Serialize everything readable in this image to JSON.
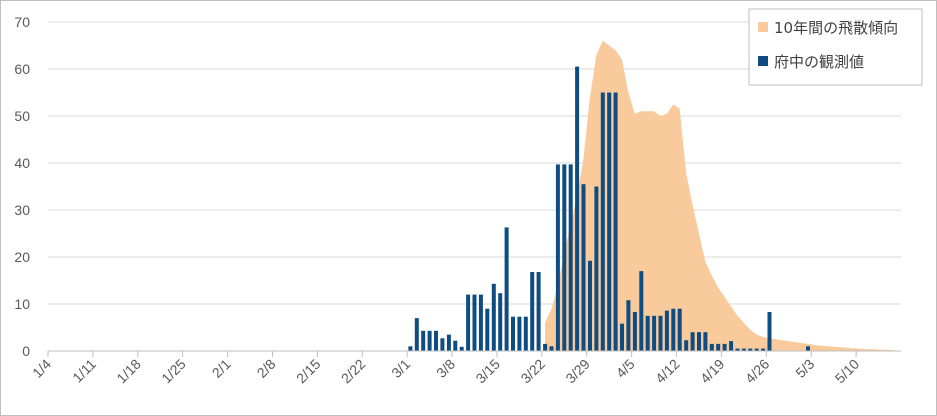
{
  "chart_data": {
    "type": "bar",
    "title": "",
    "xlabel": "",
    "ylabel": "",
    "ylim": [
      0,
      70
    ],
    "yticks": [
      "0",
      "10",
      "20",
      "30",
      "40",
      "50",
      "60",
      "70"
    ],
    "x_start": "1/4",
    "x_end": "5/16",
    "xticks": [
      "1/4",
      "1/11",
      "1/18",
      "1/25",
      "2/1",
      "2/8",
      "2/15",
      "2/22",
      "3/1",
      "3/8",
      "3/15",
      "3/22",
      "3/29",
      "4/5",
      "4/12",
      "4/19",
      "4/26",
      "5/3",
      "5/10"
    ],
    "grid": true,
    "legend_position": "top-right",
    "series": [
      {
        "name": "10年間の飛散傾向",
        "kind": "area",
        "color": "#f9cb9c",
        "points": [
          [
            "3/22",
            6
          ],
          [
            "3/23",
            9
          ],
          [
            "3/24",
            14
          ],
          [
            "3/25",
            21
          ],
          [
            "3/26",
            27
          ],
          [
            "3/27",
            33
          ],
          [
            "3/28",
            41
          ],
          [
            "3/29",
            54
          ],
          [
            "3/30",
            63
          ],
          [
            "3/31",
            66
          ],
          [
            "4/1",
            65
          ],
          [
            "4/2",
            64
          ],
          [
            "4/3",
            62
          ],
          [
            "4/4",
            55
          ],
          [
            "4/5",
            50.5
          ],
          [
            "4/6",
            51
          ],
          [
            "4/7",
            51
          ],
          [
            "4/8",
            51
          ],
          [
            "4/9",
            50
          ],
          [
            "4/10",
            50.5
          ],
          [
            "4/11",
            52.5
          ],
          [
            "4/12",
            51.5
          ],
          [
            "4/13",
            38
          ],
          [
            "4/14",
            31
          ],
          [
            "4/15",
            25
          ],
          [
            "4/16",
            19
          ],
          [
            "4/17",
            16
          ],
          [
            "4/18",
            13.5
          ],
          [
            "4/19",
            11.5
          ],
          [
            "4/20",
            9.5
          ],
          [
            "4/21",
            7.5
          ],
          [
            "4/22",
            6
          ],
          [
            "4/23",
            4.5
          ],
          [
            "4/24",
            3.5
          ],
          [
            "4/25",
            3
          ],
          [
            "4/26",
            2.7
          ],
          [
            "4/27",
            2.5
          ],
          [
            "4/28",
            2.3
          ],
          [
            "4/29",
            2.1
          ],
          [
            "4/30",
            1.9
          ],
          [
            "5/1",
            1.7
          ],
          [
            "5/2",
            1.5
          ],
          [
            "5/3",
            1.3
          ],
          [
            "5/4",
            1.1
          ],
          [
            "5/5",
            1
          ],
          [
            "5/6",
            0.9
          ],
          [
            "5/7",
            0.8
          ],
          [
            "5/8",
            0.7
          ],
          [
            "5/9",
            0.6
          ],
          [
            "5/10",
            0.5
          ],
          [
            "5/11",
            0.4
          ],
          [
            "5/12",
            0.4
          ],
          [
            "5/13",
            0.3
          ],
          [
            "5/14",
            0.3
          ],
          [
            "5/15",
            0.2
          ],
          [
            "5/16",
            0.1
          ]
        ]
      },
      {
        "name": "府中の観測値",
        "kind": "bar",
        "color": "#0f4c81",
        "points": [
          [
            "3/1",
            1
          ],
          [
            "3/2",
            7
          ],
          [
            "3/3",
            4.3
          ],
          [
            "3/4",
            4.3
          ],
          [
            "3/5",
            4.3
          ],
          [
            "3/6",
            2.7
          ],
          [
            "3/7",
            3.5
          ],
          [
            "3/8",
            2.2
          ],
          [
            "3/9",
            0.9
          ],
          [
            "3/10",
            12
          ],
          [
            "3/11",
            12
          ],
          [
            "3/12",
            12
          ],
          [
            "3/13",
            9
          ],
          [
            "3/14",
            14.3
          ],
          [
            "3/15",
            12.3
          ],
          [
            "3/16",
            26.3
          ],
          [
            "3/17",
            7.3
          ],
          [
            "3/18",
            7.3
          ],
          [
            "3/19",
            7.3
          ],
          [
            "3/20",
            16.8
          ],
          [
            "3/21",
            16.8
          ],
          [
            "3/22",
            1.5
          ],
          [
            "3/23",
            1
          ],
          [
            "3/24",
            39.7
          ],
          [
            "3/25",
            39.7
          ],
          [
            "3/26",
            39.7
          ],
          [
            "3/27",
            60.5
          ],
          [
            "3/28",
            35.5
          ],
          [
            "3/29",
            19.2
          ],
          [
            "3/30",
            35
          ],
          [
            "3/31",
            55
          ],
          [
            "4/1",
            55
          ],
          [
            "4/2",
            55
          ],
          [
            "4/3",
            5.8
          ],
          [
            "4/4",
            10.8
          ],
          [
            "4/5",
            8.3
          ],
          [
            "4/6",
            17
          ],
          [
            "4/7",
            7.5
          ],
          [
            "4/8",
            7.5
          ],
          [
            "4/9",
            7.5
          ],
          [
            "4/10",
            8.6
          ],
          [
            "4/11",
            9
          ],
          [
            "4/12",
            9
          ],
          [
            "4/13",
            2.3
          ],
          [
            "4/14",
            4
          ],
          [
            "4/15",
            4
          ],
          [
            "4/16",
            4
          ],
          [
            "4/17",
            1.5
          ],
          [
            "4/18",
            1.5
          ],
          [
            "4/19",
            1.5
          ],
          [
            "4/20",
            2.1
          ],
          [
            "4/21",
            0.5
          ],
          [
            "4/22",
            0.5
          ],
          [
            "4/23",
            0.5
          ],
          [
            "4/24",
            0.5
          ],
          [
            "4/25",
            0.5
          ],
          [
            "4/26",
            8.3
          ],
          [
            "4/27",
            0
          ],
          [
            "4/28",
            0
          ],
          [
            "4/29",
            0
          ],
          [
            "4/30",
            0
          ],
          [
            "5/1",
            0
          ],
          [
            "5/2",
            1
          ]
        ]
      }
    ]
  }
}
